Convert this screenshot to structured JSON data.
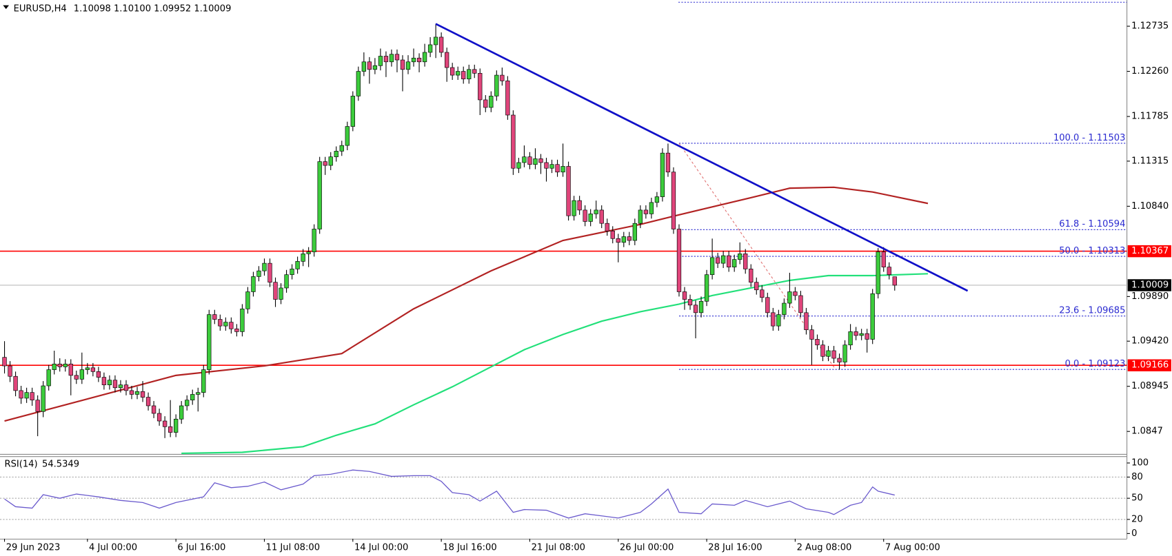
{
  "chart_data": {
    "type": "candlestick",
    "symbol": "EURUSD,H4",
    "ohlc_text": "1.10098 1.10100 1.09952 1.10009",
    "bull_color": "#3ccc3c",
    "bear_color": "#e0457b",
    "candles": [
      [
        1.0925,
        1.0942,
        1.0908,
        1.0916
      ],
      [
        1.0916,
        1.0921,
        1.0899,
        1.0905
      ],
      [
        1.0905,
        1.091,
        1.0884,
        1.089
      ],
      [
        1.089,
        1.0895,
        1.0876,
        1.0882
      ],
      [
        1.0882,
        1.0893,
        1.0877,
        1.0888
      ],
      [
        1.0888,
        1.0893,
        1.0874,
        1.088
      ],
      [
        1.088,
        1.0885,
        1.0842,
        1.0868
      ],
      [
        1.0868,
        1.09,
        1.0862,
        1.0895
      ],
      [
        1.0895,
        1.0917,
        1.089,
        1.0912
      ],
      [
        1.0912,
        1.0932,
        1.0907,
        1.0918
      ],
      [
        1.0918,
        1.0924,
        1.091,
        1.0915
      ],
      [
        1.0915,
        1.0923,
        1.091,
        1.0918
      ],
      [
        1.0918,
        1.0923,
        1.0885,
        1.0906
      ],
      [
        1.0906,
        1.0911,
        1.0897,
        1.0902
      ],
      [
        1.0902,
        1.093,
        1.0897,
        1.0912
      ],
      [
        1.0912,
        1.0919,
        1.0907,
        1.0914
      ],
      [
        1.0914,
        1.0919,
        1.0905,
        1.091
      ],
      [
        1.091,
        1.0915,
        1.0899,
        1.0904
      ],
      [
        1.0904,
        1.0909,
        1.0891,
        1.0896
      ],
      [
        1.0896,
        1.0906,
        1.0891,
        1.0901
      ],
      [
        1.0901,
        1.0906,
        1.0888,
        1.0893
      ],
      [
        1.0893,
        1.0901,
        1.0888,
        1.0896
      ],
      [
        1.0896,
        1.0901,
        1.0885,
        1.089
      ],
      [
        1.089,
        1.0895,
        1.0881,
        1.0886
      ],
      [
        1.0886,
        1.0894,
        1.0881,
        1.0889
      ],
      [
        1.0889,
        1.09,
        1.0878,
        1.0883
      ],
      [
        1.0883,
        1.0888,
        1.0869,
        1.0874
      ],
      [
        1.0874,
        1.0879,
        1.0861,
        1.0866
      ],
      [
        1.0866,
        1.0871,
        1.0853,
        1.0858
      ],
      [
        1.0858,
        1.0863,
        1.084,
        1.0852
      ],
      [
        1.0852,
        1.088,
        1.0841,
        1.0846
      ],
      [
        1.0846,
        1.0865,
        1.0841,
        1.086
      ],
      [
        1.086,
        1.0879,
        1.0855,
        1.0874
      ],
      [
        1.0874,
        1.0885,
        1.0869,
        1.088
      ],
      [
        1.088,
        1.0891,
        1.0875,
        1.0886
      ],
      [
        1.0886,
        1.0893,
        1.0868,
        1.0888
      ],
      [
        1.0888,
        1.0917,
        1.0883,
        1.0912
      ],
      [
        1.0912,
        1.0975,
        1.0907,
        1.097
      ],
      [
        1.097,
        1.0975,
        1.096,
        1.0965
      ],
      [
        1.0965,
        1.097,
        1.0953,
        1.0958
      ],
      [
        1.0958,
        1.0967,
        1.0953,
        1.0962
      ],
      [
        1.0962,
        1.0967,
        1.095,
        1.0955
      ],
      [
        1.0955,
        1.096,
        1.0947,
        1.0952
      ],
      [
        1.0952,
        1.0981,
        1.0947,
        1.0976
      ],
      [
        1.0976,
        1.0999,
        1.0971,
        1.0994
      ],
      [
        1.0994,
        1.1015,
        1.0989,
        1.101
      ],
      [
        1.101,
        1.1021,
        1.1005,
        1.1016
      ],
      [
        1.1016,
        1.1029,
        1.1011,
        1.1024
      ],
      [
        1.1024,
        1.1029,
        1.0999,
        1.1004
      ],
      [
        1.1004,
        1.1009,
        1.0978,
        1.0986
      ],
      [
        1.0986,
        1.1003,
        1.0981,
        1.0998
      ],
      [
        1.0998,
        1.1017,
        1.0993,
        1.1012
      ],
      [
        1.1012,
        1.1023,
        1.1007,
        1.1018
      ],
      [
        1.1018,
        1.1031,
        1.1013,
        1.1026
      ],
      [
        1.1026,
        1.1039,
        1.1021,
        1.1034
      ],
      [
        1.1034,
        1.1041,
        1.102,
        1.1036
      ],
      [
        1.1036,
        1.1065,
        1.1031,
        1.106
      ],
      [
        1.106,
        1.1136,
        1.1055,
        1.1131
      ],
      [
        1.1131,
        1.1136,
        1.1117,
        1.1127
      ],
      [
        1.1127,
        1.1141,
        1.1122,
        1.1136
      ],
      [
        1.1136,
        1.1147,
        1.1131,
        1.1142
      ],
      [
        1.1142,
        1.1153,
        1.1137,
        1.1148
      ],
      [
        1.1148,
        1.1173,
        1.1143,
        1.1168
      ],
      [
        1.1168,
        1.1205,
        1.1163,
        1.12
      ],
      [
        1.12,
        1.1231,
        1.1195,
        1.1226
      ],
      [
        1.1226,
        1.1246,
        1.1221,
        1.1236
      ],
      [
        1.1236,
        1.1241,
        1.1213,
        1.1228
      ],
      [
        1.1228,
        1.124,
        1.1223,
        1.1232
      ],
      [
        1.1232,
        1.125,
        1.1227,
        1.1242
      ],
      [
        1.1242,
        1.1247,
        1.122,
        1.1236
      ],
      [
        1.1236,
        1.1249,
        1.1231,
        1.1244
      ],
      [
        1.1244,
        1.1249,
        1.1225,
        1.1238
      ],
      [
        1.1238,
        1.1243,
        1.1205,
        1.1228
      ],
      [
        1.1228,
        1.1243,
        1.1223,
        1.1236
      ],
      [
        1.1236,
        1.125,
        1.1231,
        1.124
      ],
      [
        1.124,
        1.1245,
        1.1225,
        1.1236
      ],
      [
        1.1236,
        1.1255,
        1.1231,
        1.1246
      ],
      [
        1.1246,
        1.1262,
        1.1241,
        1.1254
      ],
      [
        1.1254,
        1.1276,
        1.124,
        1.1262
      ],
      [
        1.1262,
        1.1267,
        1.1241,
        1.1246
      ],
      [
        1.1246,
        1.1251,
        1.1215,
        1.123
      ],
      [
        1.123,
        1.1235,
        1.1217,
        1.1222
      ],
      [
        1.1222,
        1.1231,
        1.1217,
        1.1226
      ],
      [
        1.1226,
        1.1231,
        1.1213,
        1.1218
      ],
      [
        1.1218,
        1.1233,
        1.1213,
        1.1228
      ],
      [
        1.1228,
        1.1233,
        1.1219,
        1.1224
      ],
      [
        1.1224,
        1.1229,
        1.118,
        1.1196
      ],
      [
        1.1196,
        1.1201,
        1.1183,
        1.1188
      ],
      [
        1.1188,
        1.1205,
        1.1183,
        1.12
      ],
      [
        1.12,
        1.1227,
        1.1195,
        1.1222
      ],
      [
        1.1222,
        1.123,
        1.1211,
        1.1216
      ],
      [
        1.1216,
        1.1221,
        1.1175,
        1.118
      ],
      [
        1.118,
        1.1185,
        1.1117,
        1.1124
      ],
      [
        1.1124,
        1.1135,
        1.1119,
        1.113
      ],
      [
        1.113,
        1.1148,
        1.1125,
        1.1136
      ],
      [
        1.1136,
        1.1141,
        1.1123,
        1.1128
      ],
      [
        1.1128,
        1.1145,
        1.1123,
        1.1134
      ],
      [
        1.1134,
        1.1139,
        1.1118,
        1.113
      ],
      [
        1.113,
        1.1135,
        1.111,
        1.1124
      ],
      [
        1.1124,
        1.1133,
        1.1119,
        1.1128
      ],
      [
        1.1128,
        1.1133,
        1.1115,
        1.112
      ],
      [
        1.112,
        1.115,
        1.1115,
        1.1126
      ],
      [
        1.1126,
        1.1131,
        1.1069,
        1.1074
      ],
      [
        1.1074,
        1.1095,
        1.1069,
        1.109
      ],
      [
        1.109,
        1.1095,
        1.1075,
        1.108
      ],
      [
        1.108,
        1.1085,
        1.1063,
        1.1068
      ],
      [
        1.1068,
        1.1081,
        1.1063,
        1.1076
      ],
      [
        1.1076,
        1.109,
        1.1071,
        1.108
      ],
      [
        1.108,
        1.1085,
        1.1061,
        1.1066
      ],
      [
        1.1066,
        1.1071,
        1.1053,
        1.1058
      ],
      [
        1.1058,
        1.1063,
        1.1045,
        1.105
      ],
      [
        1.105,
        1.1055,
        1.1025,
        1.1046
      ],
      [
        1.1046,
        1.1057,
        1.1041,
        1.1052
      ],
      [
        1.1052,
        1.1057,
        1.1043,
        1.1048
      ],
      [
        1.1048,
        1.1071,
        1.1043,
        1.1066
      ],
      [
        1.1066,
        1.1085,
        1.1061,
        1.108
      ],
      [
        1.108,
        1.1085,
        1.1071,
        1.1076
      ],
      [
        1.1076,
        1.1093,
        1.1071,
        1.1088
      ],
      [
        1.1088,
        1.1099,
        1.1083,
        1.1094
      ],
      [
        1.1094,
        1.1145,
        1.1089,
        1.114
      ],
      [
        1.114,
        1.115,
        1.1115,
        1.112
      ],
      [
        1.112,
        1.1125,
        1.1055,
        1.106
      ],
      [
        1.106,
        1.1065,
        1.0989,
        1.0994
      ],
      [
        1.0994,
        1.0999,
        1.0975,
        1.0986
      ],
      [
        1.0986,
        1.0991,
        1.0975,
        1.098
      ],
      [
        1.098,
        1.0985,
        1.0945,
        1.0972
      ],
      [
        1.0972,
        1.0989,
        1.0967,
        1.0984
      ],
      [
        1.0984,
        1.1017,
        1.0979,
        1.1012
      ],
      [
        1.1012,
        1.105,
        1.1007,
        1.103
      ],
      [
        1.103,
        1.1035,
        1.1019,
        1.1024
      ],
      [
        1.1024,
        1.1037,
        1.1019,
        1.1032
      ],
      [
        1.1032,
        1.1037,
        1.1015,
        1.102
      ],
      [
        1.102,
        1.1033,
        1.1015,
        1.1028
      ],
      [
        1.1028,
        1.1046,
        1.1023,
        1.1034
      ],
      [
        1.1034,
        1.1039,
        1.1013,
        1.1018
      ],
      [
        1.1018,
        1.1023,
        1.0999,
        1.1004
      ],
      [
        1.1004,
        1.1009,
        1.0991,
        1.0996
      ],
      [
        1.0996,
        1.1001,
        1.0983,
        1.0988
      ],
      [
        1.0988,
        1.0993,
        1.0967,
        1.0972
      ],
      [
        1.0972,
        1.0977,
        1.0953,
        1.0958
      ],
      [
        1.0958,
        1.0975,
        1.0953,
        1.097
      ],
      [
        1.097,
        1.0987,
        1.0965,
        1.0982
      ],
      [
        1.0982,
        1.1014,
        1.0977,
        1.0994
      ],
      [
        1.0994,
        1.0999,
        1.0985,
        1.099
      ],
      [
        1.099,
        1.0995,
        1.0967,
        1.0972
      ],
      [
        1.0972,
        1.0977,
        1.0949,
        1.0954
      ],
      [
        1.0954,
        1.0959,
        1.0917,
        1.0944
      ],
      [
        1.0944,
        1.0949,
        1.0933,
        1.0938
      ],
      [
        1.0938,
        1.0943,
        1.0921,
        1.0926
      ],
      [
        1.0926,
        1.0937,
        1.0921,
        1.0932
      ],
      [
        1.0932,
        1.0937,
        1.0919,
        1.0924
      ],
      [
        1.0924,
        1.0929,
        1.0912,
        1.092
      ],
      [
        1.092,
        1.0943,
        1.0915,
        1.0938
      ],
      [
        1.0938,
        1.096,
        1.0933,
        1.0952
      ],
      [
        1.0952,
        1.0957,
        1.0943,
        1.0948
      ],
      [
        1.0948,
        1.0955,
        1.0943,
        1.095
      ],
      [
        1.095,
        1.0955,
        1.093,
        1.0944
      ],
      [
        1.0944,
        1.0997,
        1.0939,
        1.0992
      ],
      [
        1.0992,
        1.104,
        1.0987,
        1.1036
      ],
      [
        1.1036,
        1.1041,
        1.1015,
        1.102
      ],
      [
        1.102,
        1.1025,
        1.1007,
        1.1012
      ],
      [
        1.10098,
        1.101,
        1.09952,
        1.10009
      ]
    ],
    "xlim": [
      -0.815,
      203
    ],
    "xticks": [
      {
        "value": 0,
        "label": "29 Jun 2023"
      },
      {
        "value": 15,
        "label": "4 Jul 00:00"
      },
      {
        "value": 31,
        "label": "6 Jul 16:00"
      },
      {
        "value": 47,
        "label": "11 Jul 08:00"
      },
      {
        "value": 63,
        "label": "14 Jul 00:00"
      },
      {
        "value": 79,
        "label": "18 Jul 16:00"
      },
      {
        "value": 95,
        "label": "21 Jul 08:00"
      },
      {
        "value": 111,
        "label": "26 Jul 00:00"
      },
      {
        "value": 127,
        "label": "28 Jul 16:00"
      },
      {
        "value": 143,
        "label": "2 Aug 08:00"
      },
      {
        "value": 159,
        "label": "7 Aug 00:00"
      }
    ],
    "ylim": [
      1.08233,
      1.13011
    ],
    "yticks": [
      1.12735,
      {
        "value": 1.1226,
        "label": "1.12260"
      },
      1.11785,
      1.11315,
      {
        "value": 1.1084,
        "label": "1.10840"
      },
      {
        "value": 1.0989,
        "label": "1.09890"
      },
      {
        "value": 1.0942,
        "label": "1.09420"
      },
      1.08945,
      1.0847
    ],
    "levels": [
      {
        "value": 1.10367,
        "color": "#ff0000"
      },
      {
        "value": 1.09166,
        "color": "#ff0000"
      }
    ],
    "last_price": 1.10009,
    "moving_averages": [
      {
        "color": "#b22222",
        "x": [
          0,
          31,
          47,
          61,
          74,
          88,
          101,
          115,
          122,
          135,
          142,
          150,
          157,
          167
        ],
        "values": [
          1.0858,
          1.0906,
          1.0916,
          1.0929,
          1.0976,
          1.1016,
          1.1048,
          1.1065,
          1.1075,
          1.1093,
          1.1103,
          1.1104,
          1.1099,
          1.1087
        ]
      },
      {
        "color": "#22e07a",
        "x": [
          32,
          43,
          54,
          60,
          67,
          74,
          81,
          88,
          94,
          101,
          108,
          115,
          122,
          128,
          135,
          142,
          149,
          157,
          167
        ],
        "values": [
          1.0824,
          1.0825,
          1.0831,
          1.0843,
          1.0855,
          1.0875,
          1.0894,
          1.0915,
          1.0933,
          1.0949,
          1.0963,
          1.0973,
          1.0981,
          1.099,
          1.0998,
          1.1006,
          1.1011,
          1.1011,
          1.1013
        ]
      }
    ],
    "trendline": {
      "color": "#1010c8",
      "x": [
        78,
        174.2
      ],
      "values": [
        1.1276,
        1.0995
      ]
    },
    "fibonacci": {
      "color": "#2a2ad0",
      "line_color": "#e07070",
      "x": [
        122,
        150.3
      ],
      "levels": [
        {
          "value": 1.11503,
          "label": "100.0 - 1.11503"
        },
        {
          "value": 1.10594,
          "label": "61.8 - 1.10594"
        },
        {
          "value": 1.10313,
          "label": "50.0 - 1.10313"
        },
        {
          "value": 1.09685,
          "label": "23.6 - 1.09685"
        },
        {
          "value": 1.09123,
          "label": "0.0 - 1.09123"
        }
      ]
    },
    "rsi": {
      "name": "RSI(14)",
      "color": "#6a5acd",
      "ylim": [
        -7.4,
        109.6
      ],
      "yticks": [
        100,
        80,
        50,
        20,
        0
      ],
      "x": [
        0,
        2,
        5,
        7,
        10,
        13,
        17,
        21,
        25,
        28,
        31,
        36,
        38,
        41,
        44,
        47,
        50,
        54,
        56,
        59,
        63,
        66,
        70,
        74,
        77,
        79,
        81,
        84,
        86,
        89,
        92,
        94,
        98,
        102,
        105,
        108,
        111,
        115,
        117,
        120,
        122,
        126,
        128,
        132,
        134,
        138,
        142,
        145,
        149,
        150,
        153,
        155,
        157,
        158,
        161
      ],
      "values": [
        49,
        38,
        36,
        55,
        50,
        56,
        52,
        47,
        44,
        36,
        44,
        52,
        72,
        65,
        67,
        73,
        62,
        70,
        82,
        84,
        90,
        88,
        81,
        82,
        82,
        74,
        58,
        55,
        46,
        60,
        30,
        34,
        33,
        22,
        28,
        25,
        22,
        30,
        42,
        63,
        30,
        28,
        42,
        40,
        47,
        38,
        46,
        35,
        30,
        27,
        40,
        44,
        66,
        60,
        54.5349
      ]
    }
  }
}
